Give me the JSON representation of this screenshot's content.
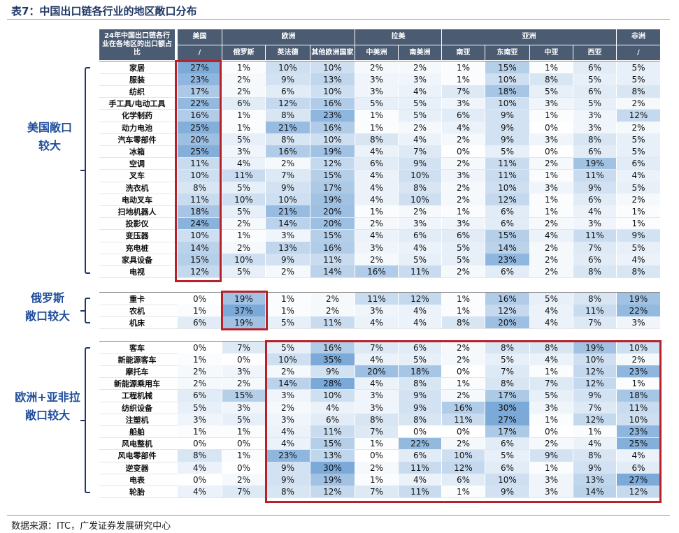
{
  "title": "表7：中国出口链各行业的地区敞口分布",
  "source": "数据来源：ITC，广发证券发展研究中心",
  "header": {
    "corner": "24年中国出口链各行业在各地区的出口额占比",
    "groups": [
      "美国",
      "欧洲",
      "拉美",
      "亚洲",
      "非洲"
    ],
    "columns": [
      "/",
      "俄罗斯",
      "英法德",
      "其他欧洲国家",
      "中美洲",
      "南美洲",
      "南亚",
      "东南亚",
      "中亚",
      "西亚",
      "/"
    ]
  },
  "group_labels": [
    {
      "lines": [
        "美国敞口",
        "较大"
      ]
    },
    {
      "lines": [
        "俄罗斯",
        "敞口较大"
      ]
    },
    {
      "lines": [
        "欧洲+亚非拉",
        "敞口较大"
      ]
    }
  ],
  "sections": [
    {
      "rows": [
        {
          "label": "家居",
          "values": [
            "27%",
            "1%",
            "10%",
            "10%",
            "2%",
            "2%",
            "1%",
            "15%",
            "1%",
            "6%",
            "5%"
          ]
        },
        {
          "label": "服装",
          "values": [
            "23%",
            "2%",
            "9%",
            "13%",
            "3%",
            "3%",
            "1%",
            "10%",
            "8%",
            "5%",
            "5%"
          ]
        },
        {
          "label": "纺织",
          "values": [
            "17%",
            "2%",
            "6%",
            "10%",
            "3%",
            "4%",
            "7%",
            "18%",
            "5%",
            "6%",
            "8%"
          ]
        },
        {
          "label": "手工具/电动工具",
          "values": [
            "22%",
            "6%",
            "12%",
            "16%",
            "5%",
            "5%",
            "3%",
            "10%",
            "3%",
            "5%",
            "2%"
          ]
        },
        {
          "label": "化学制药",
          "values": [
            "16%",
            "1%",
            "8%",
            "23%",
            "1%",
            "5%",
            "6%",
            "9%",
            "1%",
            "3%",
            "12%"
          ]
        },
        {
          "label": "动力电池",
          "values": [
            "25%",
            "1%",
            "21%",
            "16%",
            "1%",
            "2%",
            "4%",
            "9%",
            "0%",
            "3%",
            "2%"
          ]
        },
        {
          "label": "汽车零部件",
          "values": [
            "20%",
            "5%",
            "8%",
            "10%",
            "8%",
            "4%",
            "2%",
            "9%",
            "3%",
            "8%",
            "5%"
          ]
        },
        {
          "label": "冰箱",
          "values": [
            "25%",
            "3%",
            "16%",
            "19%",
            "4%",
            "7%",
            "0%",
            "5%",
            "0%",
            "6%",
            "5%"
          ]
        },
        {
          "label": "空调",
          "values": [
            "11%",
            "4%",
            "2%",
            "12%",
            "6%",
            "9%",
            "2%",
            "11%",
            "2%",
            "19%",
            "6%"
          ]
        },
        {
          "label": "叉车",
          "values": [
            "10%",
            "11%",
            "7%",
            "15%",
            "4%",
            "10%",
            "3%",
            "11%",
            "1%",
            "11%",
            "4%"
          ]
        },
        {
          "label": "洗衣机",
          "values": [
            "8%",
            "5%",
            "9%",
            "17%",
            "4%",
            "8%",
            "2%",
            "10%",
            "3%",
            "9%",
            "5%"
          ]
        },
        {
          "label": "电动叉车",
          "values": [
            "11%",
            "10%",
            "10%",
            "19%",
            "4%",
            "10%",
            "2%",
            "12%",
            "1%",
            "6%",
            "2%"
          ]
        },
        {
          "label": "扫地机器人",
          "values": [
            "18%",
            "5%",
            "21%",
            "20%",
            "1%",
            "2%",
            "1%",
            "6%",
            "1%",
            "4%",
            "1%"
          ]
        },
        {
          "label": "投影仪",
          "values": [
            "24%",
            "2%",
            "14%",
            "20%",
            "2%",
            "3%",
            "3%",
            "6%",
            "2%",
            "3%",
            "1%"
          ]
        },
        {
          "label": "变压器",
          "values": [
            "10%",
            "1%",
            "3%",
            "15%",
            "4%",
            "6%",
            "6%",
            "15%",
            "4%",
            "11%",
            "9%"
          ]
        },
        {
          "label": "充电桩",
          "values": [
            "14%",
            "2%",
            "13%",
            "16%",
            "3%",
            "4%",
            "5%",
            "14%",
            "2%",
            "7%",
            "5%"
          ]
        },
        {
          "label": "家具设备",
          "values": [
            "15%",
            "10%",
            "9%",
            "11%",
            "2%",
            "5%",
            "5%",
            "23%",
            "2%",
            "6%",
            "4%"
          ]
        },
        {
          "label": "电视",
          "values": [
            "12%",
            "5%",
            "2%",
            "14%",
            "16%",
            "11%",
            "2%",
            "6%",
            "2%",
            "8%",
            "8%"
          ]
        }
      ]
    },
    {
      "rows": [
        {
          "label": "重卡",
          "values": [
            "0%",
            "19%",
            "1%",
            "2%",
            "11%",
            "12%",
            "1%",
            "16%",
            "5%",
            "8%",
            "19%"
          ]
        },
        {
          "label": "农机",
          "values": [
            "1%",
            "37%",
            "1%",
            "2%",
            "3%",
            "4%",
            "1%",
            "12%",
            "4%",
            "11%",
            "22%"
          ]
        },
        {
          "label": "机床",
          "values": [
            "6%",
            "19%",
            "5%",
            "11%",
            "4%",
            "4%",
            "8%",
            "20%",
            "4%",
            "7%",
            "3%"
          ]
        }
      ]
    },
    {
      "rows": [
        {
          "label": "客车",
          "values": [
            "0%",
            "7%",
            "5%",
            "16%",
            "7%",
            "6%",
            "2%",
            "8%",
            "8%",
            "19%",
            "10%"
          ]
        },
        {
          "label": "新能源客车",
          "values": [
            "1%",
            "0%",
            "10%",
            "35%",
            "4%",
            "5%",
            "2%",
            "5%",
            "4%",
            "10%",
            "2%"
          ]
        },
        {
          "label": "摩托车",
          "values": [
            "2%",
            "3%",
            "2%",
            "9%",
            "20%",
            "18%",
            "0%",
            "7%",
            "1%",
            "12%",
            "23%"
          ]
        },
        {
          "label": "新能源乘用车",
          "values": [
            "2%",
            "2%",
            "14%",
            "28%",
            "4%",
            "8%",
            "1%",
            "8%",
            "7%",
            "12%",
            "1%"
          ]
        },
        {
          "label": "工程机械",
          "values": [
            "6%",
            "15%",
            "3%",
            "10%",
            "3%",
            "9%",
            "2%",
            "17%",
            "5%",
            "9%",
            "18%"
          ]
        },
        {
          "label": "纺织设备",
          "values": [
            "5%",
            "3%",
            "2%",
            "4%",
            "3%",
            "9%",
            "16%",
            "30%",
            "3%",
            "7%",
            "11%"
          ]
        },
        {
          "label": "注塑机",
          "values": [
            "3%",
            "5%",
            "3%",
            "6%",
            "8%",
            "8%",
            "11%",
            "27%",
            "1%",
            "12%",
            "10%"
          ]
        },
        {
          "label": "船舶",
          "values": [
            "1%",
            "1%",
            "4%",
            "11%",
            "7%",
            "0%",
            "0%",
            "17%",
            "0%",
            "1%",
            "23%"
          ]
        },
        {
          "label": "风电整机",
          "values": [
            "0%",
            "0%",
            "4%",
            "15%",
            "1%",
            "22%",
            "2%",
            "6%",
            "2%",
            "4%",
            "25%"
          ]
        },
        {
          "label": "风电零部件",
          "values": [
            "8%",
            "1%",
            "23%",
            "13%",
            "0%",
            "6%",
            "10%",
            "5%",
            "9%",
            "8%",
            "4%"
          ]
        },
        {
          "label": "逆变器",
          "values": [
            "4%",
            "0%",
            "9%",
            "30%",
            "2%",
            "11%",
            "12%",
            "6%",
            "1%",
            "9%",
            "6%"
          ]
        },
        {
          "label": "电表",
          "values": [
            "0%",
            "2%",
            "9%",
            "19%",
            "1%",
            "4%",
            "6%",
            "10%",
            "3%",
            "13%",
            "27%"
          ]
        },
        {
          "label": "轮胎",
          "values": [
            "4%",
            "7%",
            "8%",
            "12%",
            "7%",
            "11%",
            "1%",
            "9%",
            "3%",
            "14%",
            "12%"
          ]
        }
      ]
    }
  ],
  "colors": {
    "header_bg": "#4a5b72",
    "highlight_border": "#b8202a",
    "bracket": "#1f3864",
    "group_label": "#1f4e9c",
    "heat_low": "#ffffff",
    "heat_high": "#7ba9d8"
  }
}
